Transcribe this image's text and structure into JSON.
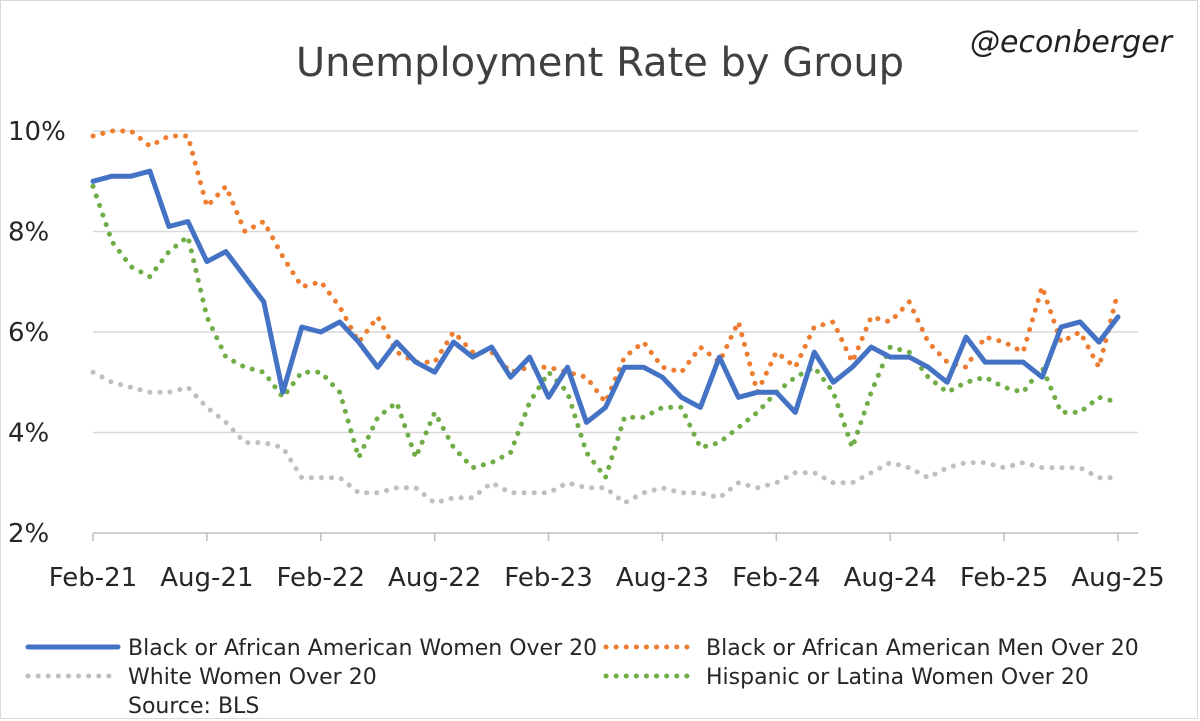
{
  "watermark": "@econberger",
  "source": "Source: BLS",
  "colors": {
    "black_women": "#4472C4",
    "black_men": "#ED7D31",
    "white_women": "#BFBFBF",
    "hispanic_women": "#70AD47"
  },
  "chart_data": {
    "type": "line",
    "title": "Unemployment Rate by Group",
    "xlabel": "",
    "ylabel": "",
    "ylim": [
      2,
      10
    ],
    "yticks": [
      2,
      4,
      6,
      8,
      10
    ],
    "ytick_labels": [
      "2%",
      "4%",
      "6%",
      "8%",
      "10%"
    ],
    "xtick_labels": [
      "Feb-21",
      "Aug-21",
      "Feb-22",
      "Aug-22",
      "Feb-23",
      "Aug-23",
      "Feb-24",
      "Aug-24",
      "Feb-25",
      "Aug-25"
    ],
    "grid": true,
    "legend_position": "bottom",
    "x": [
      "Feb-21",
      "Mar-21",
      "Apr-21",
      "May-21",
      "Jun-21",
      "Jul-21",
      "Aug-21",
      "Sep-21",
      "Oct-21",
      "Nov-21",
      "Dec-21",
      "Jan-22",
      "Feb-22",
      "Mar-22",
      "Apr-22",
      "May-22",
      "Jun-22",
      "Jul-22",
      "Aug-22",
      "Sep-22",
      "Oct-22",
      "Nov-22",
      "Dec-22",
      "Jan-23",
      "Feb-23",
      "Mar-23",
      "Apr-23",
      "May-23",
      "Jun-23",
      "Jul-23",
      "Aug-23",
      "Sep-23",
      "Oct-23",
      "Nov-23",
      "Dec-23",
      "Jan-24",
      "Feb-24",
      "Mar-24",
      "Apr-24",
      "May-24",
      "Jun-24",
      "Jul-24",
      "Aug-24",
      "Sep-24",
      "Oct-24",
      "Nov-24",
      "Dec-24",
      "Jan-25",
      "Feb-25",
      "Mar-25",
      "Apr-25",
      "May-25",
      "Jun-25",
      "Jul-25",
      "Aug-25"
    ],
    "series": [
      {
        "name": "Black or African American Women Over 20",
        "color": "#4472C4",
        "style": "solid",
        "values": [
          9.0,
          9.1,
          9.1,
          9.2,
          8.1,
          8.2,
          7.4,
          7.6,
          7.1,
          6.6,
          4.8,
          6.1,
          6.0,
          6.2,
          5.8,
          5.3,
          5.8,
          5.4,
          5.2,
          5.8,
          5.5,
          5.7,
          5.1,
          5.5,
          4.7,
          5.3,
          4.2,
          4.5,
          5.3,
          5.3,
          5.1,
          4.7,
          4.5,
          5.5,
          4.7,
          4.8,
          4.8,
          4.4,
          5.6,
          5.0,
          5.3,
          5.7,
          5.5,
          5.5,
          5.3,
          5.0,
          5.9,
          5.4,
          5.4,
          5.4,
          5.1,
          6.1,
          6.2,
          5.8,
          6.3
        ]
      },
      {
        "name": "Black or African American Men Over 20",
        "color": "#ED7D31",
        "style": "dotted",
        "values": [
          9.9,
          10.0,
          10.0,
          9.7,
          9.9,
          9.9,
          8.5,
          8.9,
          8.0,
          8.2,
          7.5,
          6.9,
          7.0,
          6.5,
          5.8,
          6.3,
          5.6,
          5.4,
          5.4,
          6.0,
          5.6,
          5.6,
          5.2,
          5.3,
          5.3,
          5.2,
          5.1,
          4.6,
          5.5,
          5.8,
          5.3,
          5.2,
          5.7,
          5.4,
          6.2,
          4.8,
          5.6,
          5.3,
          6.1,
          6.2,
          5.4,
          6.3,
          6.2,
          6.6,
          5.8,
          5.4,
          5.3,
          5.9,
          5.8,
          5.6,
          6.9,
          5.8,
          6.0,
          5.3,
          6.8
        ]
      },
      {
        "name": "White Women Over 20",
        "color": "#BFBFBF",
        "style": "dotted",
        "values": [
          5.2,
          5.0,
          4.9,
          4.8,
          4.8,
          4.9,
          4.5,
          4.2,
          3.8,
          3.8,
          3.7,
          3.1,
          3.1,
          3.1,
          2.8,
          2.8,
          2.9,
          2.9,
          2.6,
          2.7,
          2.7,
          3.0,
          2.8,
          2.8,
          2.8,
          3.0,
          2.9,
          2.9,
          2.6,
          2.8,
          2.9,
          2.8,
          2.8,
          2.7,
          3.0,
          2.9,
          3.0,
          3.2,
          3.2,
          3.0,
          3.0,
          3.2,
          3.4,
          3.3,
          3.1,
          3.3,
          3.4,
          3.4,
          3.3,
          3.4,
          3.3,
          3.3,
          3.3,
          3.1,
          3.1
        ]
      },
      {
        "name": "Hispanic or Latina Women Over 20",
        "color": "#70AD47",
        "style": "dotted",
        "values": [
          8.9,
          7.8,
          7.3,
          7.1,
          7.6,
          7.9,
          6.3,
          5.5,
          5.3,
          5.2,
          4.7,
          5.2,
          5.2,
          4.8,
          3.5,
          4.3,
          4.6,
          3.5,
          4.4,
          3.7,
          3.3,
          3.4,
          3.6,
          4.6,
          5.2,
          4.8,
          3.6,
          3.1,
          4.3,
          4.3,
          4.5,
          4.5,
          3.7,
          3.8,
          4.1,
          4.4,
          4.8,
          5.1,
          5.3,
          4.8,
          3.7,
          4.8,
          5.7,
          5.6,
          5.1,
          4.8,
          5.0,
          5.1,
          4.9,
          4.8,
          5.3,
          4.4,
          4.4,
          4.7,
          4.6
        ]
      }
    ]
  }
}
